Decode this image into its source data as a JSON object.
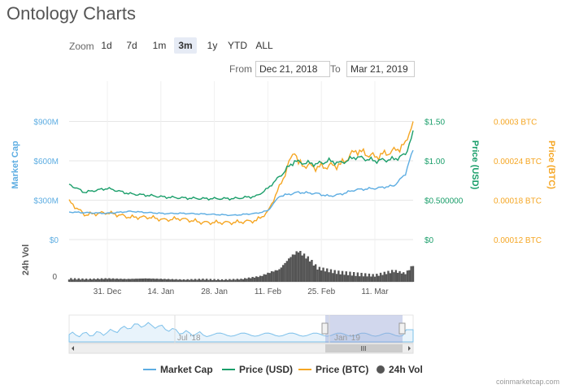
{
  "title": "Ontology Charts",
  "zoom": {
    "label": "Zoom",
    "buttons": [
      "1d",
      "7d",
      "1m",
      "3m",
      "1y",
      "YTD",
      "ALL"
    ],
    "active": "3m"
  },
  "range": {
    "from_label": "From",
    "from_value": "Dec 21, 2018",
    "to_label": "To",
    "to_value": "Mar 21, 2019"
  },
  "colors": {
    "market_cap": "#5dade2",
    "price_usd": "#1a9e6a",
    "price_btc": "#f5a623",
    "volume": "#555555",
    "grid": "#e6e6e6"
  },
  "chart_data": {
    "type": "line",
    "x_range": [
      "2018-12-21",
      "2019-03-21"
    ],
    "x_ticks": [
      "31. Dec",
      "14. Jan",
      "28. Jan",
      "11. Feb",
      "25. Feb",
      "11. Mar"
    ],
    "axes": {
      "market_cap": {
        "label": "Market Cap",
        "ticks": [
          "$0",
          "$300M",
          "$600M",
          "$900M"
        ],
        "range": [
          0,
          900
        ]
      },
      "price_usd": {
        "label": "Price (USD)",
        "ticks": [
          "$0",
          "$0.500000",
          "$1.00",
          "$1.50"
        ],
        "range": [
          0,
          1.5
        ]
      },
      "price_btc": {
        "label": "Price (BTC)",
        "ticks": [
          "0.00012 BTC",
          "0.00018 BTC",
          "0.00024 BTC",
          "0.0003 BTC"
        ],
        "range": [
          0.00012,
          0.0003
        ]
      },
      "volume": {
        "label": "24h Vol",
        "ticks": [
          "0"
        ]
      }
    },
    "series": [
      {
        "name": "Market Cap",
        "days": [
          0,
          4,
          10,
          16,
          21,
          25,
          29,
          35,
          43,
          49,
          52,
          55,
          60,
          65,
          68,
          71,
          75,
          80,
          85,
          88,
          89,
          90
        ],
        "values": [
          210,
          205,
          200,
          215,
          205,
          198,
          200,
          195,
          185,
          200,
          220,
          330,
          360,
          350,
          330,
          345,
          380,
          390,
          410,
          500,
          600,
          680
        ]
      },
      {
        "name": "Price (USD)",
        "days": [
          0,
          4,
          10,
          16,
          21,
          25,
          29,
          35,
          43,
          49,
          52,
          55,
          59,
          60,
          65,
          68,
          71,
          75,
          80,
          85,
          88,
          89,
          90
        ],
        "values": [
          0.7,
          0.6,
          0.65,
          0.58,
          0.56,
          0.54,
          0.53,
          0.52,
          0.52,
          0.55,
          0.65,
          0.8,
          1.0,
          0.98,
          0.96,
          1.0,
          0.97,
          1.05,
          1.0,
          1.02,
          1.08,
          1.22,
          1.35
        ]
      },
      {
        "name": "Price (BTC)",
        "days": [
          0,
          4,
          10,
          16,
          21,
          25,
          29,
          35,
          43,
          49,
          52,
          55,
          59,
          60,
          65,
          68,
          71,
          75,
          80,
          85,
          88,
          89,
          90
        ],
        "values": [
          0.000178,
          0.000158,
          0.000161,
          0.000154,
          0.000154,
          0.00015,
          0.000152,
          0.000146,
          0.000146,
          0.000149,
          0.000162,
          0.0002,
          0.000257,
          0.000235,
          0.00023,
          0.000232,
          0.000234,
          0.000256,
          0.000246,
          0.000255,
          0.000265,
          0.000285,
          0.000298
        ]
      },
      {
        "name": "24h Vol",
        "days": [
          0,
          5,
          10,
          15,
          20,
          25,
          30,
          35,
          40,
          45,
          50,
          53,
          55,
          58,
          60,
          63,
          65,
          70,
          75,
          80,
          85,
          88,
          90
        ],
        "values": [
          6,
          5,
          6,
          5,
          6,
          5,
          4,
          5,
          4,
          5,
          10,
          18,
          22,
          45,
          55,
          40,
          25,
          18,
          15,
          12,
          20,
          15,
          30
        ]
      }
    ],
    "legend_position": "bottom",
    "grid": true
  },
  "navigator": {
    "labels": [
      "Jul '18",
      "Jan '19"
    ],
    "handle_label": "III"
  },
  "credit": "coinmarketcap.com"
}
